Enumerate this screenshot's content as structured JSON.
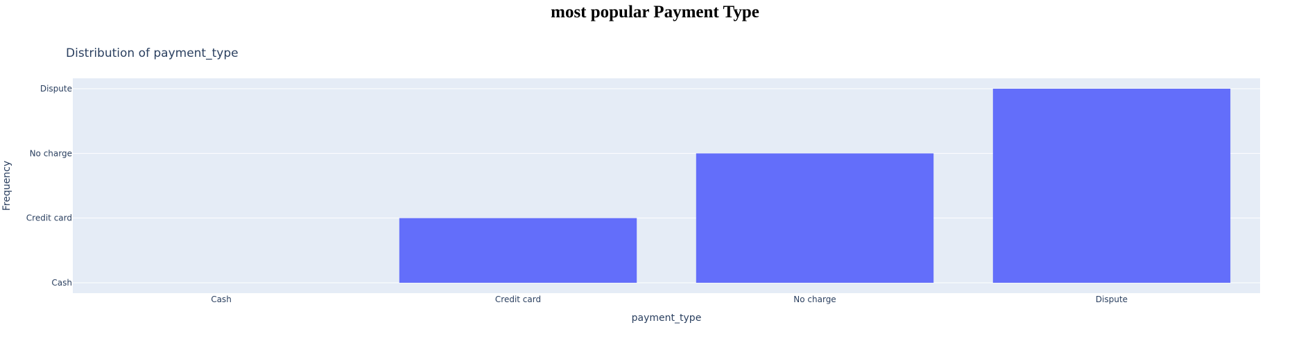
{
  "page": {
    "title": "most popular Payment Type"
  },
  "chart_data": {
    "type": "bar",
    "title": "Distribution of payment_type",
    "xlabel": "payment_type",
    "ylabel": "Frequency",
    "categories": [
      "Cash",
      "Credit card",
      "No charge",
      "Dispute"
    ],
    "y_categories": [
      "Cash",
      "Credit card",
      "No charge",
      "Dispute"
    ],
    "values": [
      "Cash",
      "Credit card",
      "No charge",
      "Dispute"
    ],
    "grid": true,
    "legend": "none",
    "colors": {
      "bar": "#636efa",
      "plot_bg": "#e5ecf6",
      "grid": "#ffffff",
      "text": "#2a3f5f"
    }
  }
}
